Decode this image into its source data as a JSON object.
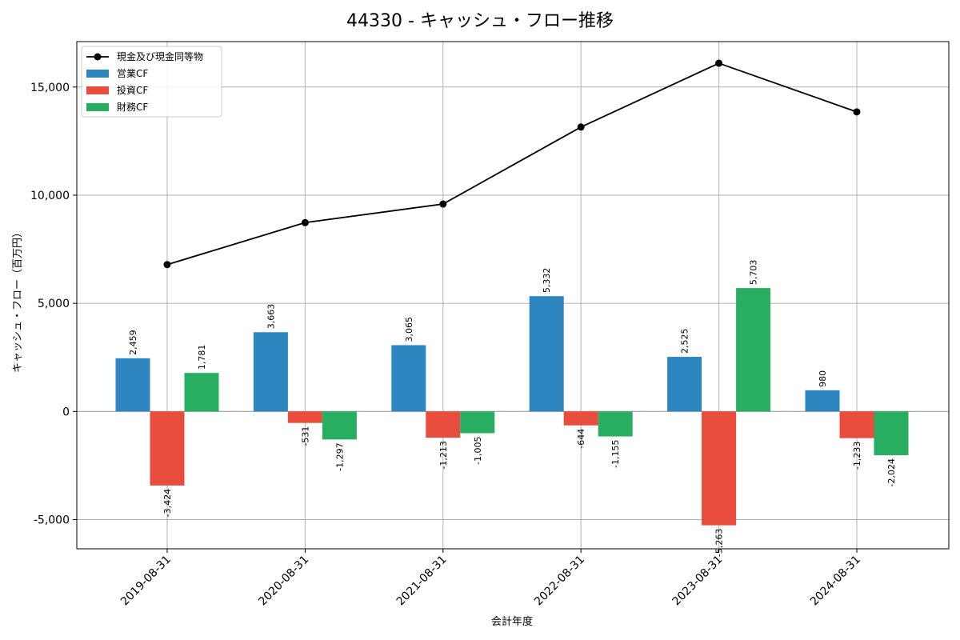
{
  "chart_data": {
    "type": "bar",
    "title": "44330 - キャッシュ・フロー推移",
    "xlabel": "会計年度",
    "ylabel": "キャッシュ・フロー（百万円）",
    "categories": [
      "2019-08-31",
      "2020-08-31",
      "2021-08-31",
      "2022-08-31",
      "2023-08-31",
      "2024-08-31"
    ],
    "series": [
      {
        "name": "営業CF",
        "kind": "bar",
        "color": "#2e86c1",
        "values": [
          2459,
          3663,
          3065,
          5332,
          2525,
          980
        ],
        "labels": [
          "2,459",
          "3,663",
          "3,065",
          "5,332",
          "2,525",
          "980"
        ]
      },
      {
        "name": "投資CF",
        "kind": "bar",
        "color": "#e74c3c",
        "values": [
          -3424,
          -531,
          -1213,
          -644,
          -5263,
          -1233
        ],
        "labels": [
          "-3,424",
          "-531",
          "-1,213",
          "-644",
          "-5,263",
          "-1,233"
        ]
      },
      {
        "name": "財務CF",
        "kind": "bar",
        "color": "#27ae60",
        "values": [
          1781,
          -1297,
          -1005,
          -1155,
          5703,
          -2024
        ],
        "labels": [
          "1,781",
          "-1,297",
          "-1,005",
          "-1,155",
          "5,703",
          "-2,024"
        ]
      },
      {
        "name": "現金及び現金同等物",
        "kind": "line",
        "color": "#000000",
        "values": [
          6790,
          8730,
          9590,
          13150,
          16100,
          13850
        ]
      }
    ],
    "yticks": [
      -5000,
      0,
      5000,
      10000,
      15000
    ],
    "ytick_labels": [
      "-5,000",
      "0",
      "5,000",
      "10,000",
      "15,000"
    ],
    "ylim": [
      -6350,
      17100
    ],
    "grid": true,
    "legend_position": "top-left"
  }
}
